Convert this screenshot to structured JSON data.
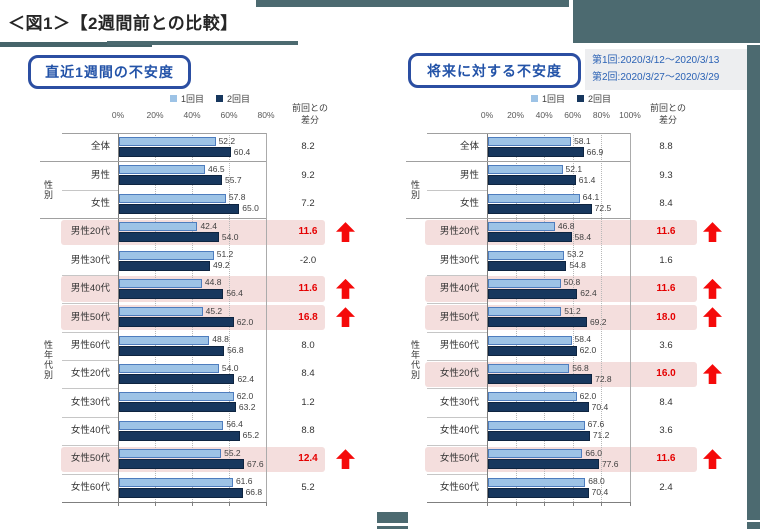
{
  "page": {
    "title": "＜図1＞【2週間前との比較】",
    "note": {
      "lines": [
        "第1回:2020/3/12～2020/3/13",
        "第2回:2020/3/27～2020/3/29"
      ]
    }
  },
  "colors": {
    "accent_teal": "#4C6A70",
    "bar_first": "#9DC3E6",
    "bar_second": "#17375E",
    "highlight_pink": "#F4DEDD",
    "alert_red": "#F50A0A",
    "title_blue": "#2353A8"
  },
  "chart_data": [
    {
      "type": "bar",
      "title": "直近1週間の不安度",
      "legend": [
        "1回目",
        "2回目"
      ],
      "x_ticks": [
        "0%",
        "20%",
        "40%",
        "60%",
        "80%"
      ],
      "xlim": [
        0,
        80
      ],
      "diff_header": [
        "前回との",
        "差分"
      ],
      "group_labels": [
        {
          "label": "性別"
        },
        {
          "label": "性年代別"
        }
      ],
      "categories": [
        "全体",
        "男性",
        "女性",
        "男性20代",
        "男性30代",
        "男性40代",
        "男性50代",
        "男性60代",
        "女性20代",
        "女性30代",
        "女性40代",
        "女性50代",
        "女性60代"
      ],
      "series": [
        {
          "name": "1回目",
          "values": [
            52.2,
            46.5,
            57.8,
            42.4,
            51.2,
            44.8,
            45.2,
            48.8,
            54.0,
            62.0,
            56.4,
            55.2,
            61.6
          ],
          "labels": [
            "52.2",
            "46.5",
            "57.8",
            "42.4",
            "51.2",
            "44.8",
            "45.2",
            "48.8",
            "54.0",
            "62.0",
            "56.4",
            "55.2",
            "61.6"
          ]
        },
        {
          "name": "2回目",
          "values": [
            60.4,
            55.7,
            65.0,
            54.0,
            49.2,
            56.4,
            62.0,
            56.8,
            62.4,
            63.2,
            65.2,
            67.6,
            66.8
          ],
          "labels": [
            "60.4",
            "55.7",
            "65.0",
            "54.0",
            "49.2",
            "56.4",
            "62.0",
            "56.8",
            "62.4",
            "63.2",
            "65.2",
            "67.6",
            "66.8"
          ]
        }
      ],
      "diff_labels": [
        "8.2",
        "9.2",
        "7.2",
        "11.6",
        "-2.0",
        "11.6",
        "16.8",
        "8.0",
        "8.4",
        "1.2",
        "8.8",
        "12.4",
        "5.2"
      ],
      "highlighted_rows": [
        3,
        5,
        6,
        11
      ]
    },
    {
      "type": "bar",
      "title": "将来に対する不安度",
      "legend": [
        "1回目",
        "2回目"
      ],
      "x_ticks": [
        "0%",
        "20%",
        "40%",
        "60%",
        "80%",
        "100%"
      ],
      "xlim": [
        0,
        100
      ],
      "diff_header": [
        "前回との",
        "差分"
      ],
      "group_labels": [
        {
          "label": "性別"
        },
        {
          "label": "性年代別"
        }
      ],
      "categories": [
        "全体",
        "男性",
        "女性",
        "男性20代",
        "男性30代",
        "男性40代",
        "男性50代",
        "男性60代",
        "女性20代",
        "女性30代",
        "女性40代",
        "女性50代",
        "女性60代"
      ],
      "series": [
        {
          "name": "1回目",
          "values": [
            58.1,
            52.1,
            64.1,
            46.8,
            53.2,
            50.8,
            51.2,
            58.4,
            56.8,
            62.0,
            67.6,
            66.0,
            68.0
          ],
          "labels": [
            "58.1",
            "52.1",
            "64.1",
            "46.8",
            "53.2",
            "50.8",
            "51.2",
            "58.4",
            "56.8",
            "62.0",
            "67.6",
            "66.0",
            "68.0"
          ]
        },
        {
          "name": "2回目",
          "values": [
            66.9,
            61.4,
            72.5,
            58.4,
            54.8,
            62.4,
            69.2,
            62.0,
            72.8,
            70.4,
            71.2,
            77.6,
            70.4
          ],
          "labels": [
            "66.9",
            "61.4",
            "72.5",
            "58.4",
            "54.8",
            "62.4",
            "69.2",
            "62.0",
            "72.8",
            "70.4",
            "71.2",
            "77.6",
            "70.4"
          ]
        }
      ],
      "diff_labels": [
        "8.8",
        "9.3",
        "8.4",
        "11.6",
        "1.6",
        "11.6",
        "18.0",
        "3.6",
        "16.0",
        "8.4",
        "3.6",
        "11.6",
        "2.4"
      ],
      "highlighted_rows": [
        3,
        5,
        6,
        8,
        11
      ]
    }
  ]
}
